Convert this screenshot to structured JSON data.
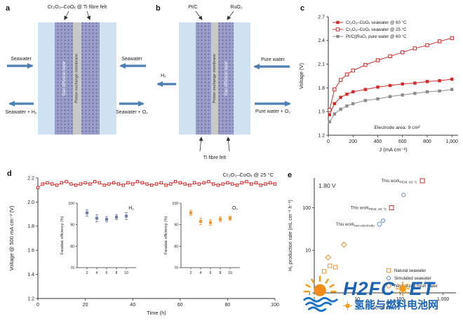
{
  "panels": {
    "a": {
      "label": "a",
      "title": "Cr₂O₃–CoOₓ @ Ti fibre felt",
      "layer_gdl": "Gas diffusion layer",
      "layer_pem": "Proton exchange membrane",
      "in_left": "Seawater",
      "out_left": "Seawater + H₂",
      "in_right": "Seawater",
      "out_right": "Seawater + O₂"
    },
    "b": {
      "label": "b",
      "cathode": "Pt/C",
      "anode": "RuO₂",
      "layer_gdl": "Gas diffusion layer",
      "layer_pem": "Proton exchange membrane",
      "out_left": "H₂",
      "in_right": "Pure water",
      "out_right": "Pure water + O₂",
      "felt": "Ti fibre felt"
    },
    "c": {
      "label": "c"
    },
    "d": {
      "label": "d"
    },
    "e": {
      "label": "e"
    }
  },
  "chart_data": [
    {
      "id": "c",
      "type": "line",
      "title": "",
      "xlabel": "J (mA cm⁻²)",
      "ylabel": "Voltage (V)",
      "xlim": [
        0,
        1050
      ],
      "ylim": [
        1.2,
        2.7
      ],
      "xticks": [
        0,
        200,
        400,
        600,
        800,
        1000
      ],
      "xtick_labels": [
        "0",
        "200",
        "400",
        "600",
        "800",
        "1,000"
      ],
      "yticks": [
        1.2,
        1.5,
        1.8,
        2.1,
        2.4,
        2.7
      ],
      "ytick_labels": [
        "1.2",
        "1.5",
        "1.8",
        "2.1",
        "2.4",
        "2.7"
      ],
      "annotation": "Electrode area: 9 cm²",
      "x": [
        10,
        50,
        100,
        150,
        200,
        300,
        400,
        500,
        600,
        700,
        800,
        900,
        1000
      ],
      "series": [
        {
          "name": "Cr₂O₃–CoOₓ seawater @ 60 °C",
          "marker": "square-filled",
          "color": "#d42a2a",
          "values": [
            1.46,
            1.6,
            1.68,
            1.72,
            1.75,
            1.78,
            1.81,
            1.83,
            1.85,
            1.86,
            1.88,
            1.89,
            1.91
          ]
        },
        {
          "name": "Cr₂O₃–CoOₓ seawater @ 25 °C",
          "marker": "square-open",
          "color": "#d42a2a",
          "values": [
            1.52,
            1.78,
            1.9,
            1.97,
            2.02,
            2.09,
            2.15,
            2.2,
            2.25,
            2.3,
            2.34,
            2.39,
            2.43
          ]
        },
        {
          "name": "Pt/C||RuO₂ pure water @ 60 °C",
          "marker": "square-filled",
          "color": "#8c8c8c",
          "values": [
            1.37,
            1.47,
            1.53,
            1.57,
            1.6,
            1.64,
            1.66,
            1.69,
            1.71,
            1.73,
            1.75,
            1.76,
            1.78
          ]
        }
      ]
    },
    {
      "id": "d_main",
      "type": "line",
      "annotation": "Cr₂O₃–CoOₓ @ 25 °C",
      "xlabel": "Time (h)",
      "ylabel": "Voltage @ 500 mA cm⁻² (V)",
      "color": "#d42a2a",
      "xlim": [
        0,
        100
      ],
      "ylim": [
        1.2,
        2.2
      ],
      "xticks": [
        0,
        20,
        40,
        60,
        80,
        100
      ],
      "xtick_labels": [
        "0",
        "20",
        "40",
        "60",
        "80",
        "100"
      ],
      "yticks": [
        1.2,
        1.4,
        1.6,
        1.8,
        2.0,
        2.2
      ],
      "ytick_labels": [
        "1.2",
        "1.4",
        "1.6",
        "1.8",
        "2.0",
        "2.2"
      ],
      "step": 2,
      "values": [
        2.12,
        2.15,
        2.16,
        2.15,
        2.14,
        2.16,
        2.17,
        2.15,
        2.14,
        2.15,
        2.16,
        2.15,
        2.17,
        2.16,
        2.14,
        2.15,
        2.16,
        2.15,
        2.14,
        2.16,
        2.15,
        2.17,
        2.16,
        2.15,
        2.14,
        2.15,
        2.16,
        2.14,
        2.15,
        2.17,
        2.16,
        2.15,
        2.14,
        2.16,
        2.15,
        2.16,
        2.17,
        2.15,
        2.14,
        2.15,
        2.16,
        2.15,
        2.14,
        2.16,
        2.17,
        2.15,
        2.16,
        2.14,
        2.15,
        2.16,
        2.15
      ]
    },
    {
      "id": "d_inset_h2",
      "type": "scatter",
      "label": "H₂",
      "color": "#6b7fae",
      "ylabel": "Faradaic efficiency (%)",
      "xlim": [
        0,
        12
      ],
      "ylim": [
        70,
        100
      ],
      "xticks": [
        2,
        4,
        6,
        8,
        10
      ],
      "yticks": [
        70,
        80,
        90,
        100
      ],
      "ytick_labels": [
        "70",
        "80",
        "90",
        "100"
      ],
      "x": [
        2,
        4,
        6,
        8,
        10
      ],
      "values": [
        95.5,
        93.0,
        92.5,
        93.5,
        94.0
      ],
      "errors": [
        1.5,
        1.6,
        1.3,
        1.2,
        1.6
      ]
    },
    {
      "id": "d_inset_o2",
      "type": "scatter",
      "label": "O₂",
      "color": "#f0942c",
      "ylabel": "Faradaic efficiency (%)",
      "xlim": [
        0,
        12
      ],
      "ylim": [
        70,
        100
      ],
      "xticks": [
        2,
        4,
        6,
        8,
        10
      ],
      "yticks": [
        70,
        80,
        90,
        100
      ],
      "ytick_labels": [
        "70",
        "80",
        "90",
        "100"
      ],
      "x": [
        2,
        4,
        6,
        8,
        10
      ],
      "values": [
        95.5,
        91.5,
        91.0,
        92.5,
        93.0
      ],
      "errors": [
        1.2,
        1.5,
        1.3,
        1.2,
        1.0
      ]
    },
    {
      "id": "e",
      "type": "scatter",
      "annotation": "1.80 V",
      "xlabel": "J (mA cm⁻²)",
      "ylabel": "H₂ production rate (mL cm⁻² h⁻¹)",
      "xscale": "log",
      "yscale": "log",
      "xlim": [
        1,
        2000
      ],
      "ylim": [
        1,
        500
      ],
      "xticks": [
        1,
        10,
        100,
        1000
      ],
      "xtick_labels": [
        "1",
        "10",
        "100",
        "1,000"
      ],
      "yticks": [
        1,
        10,
        100
      ],
      "ytick_labels": [
        "1",
        "10",
        "100"
      ],
      "series": [
        {
          "name": "Natural seawater",
          "marker": "square-open",
          "color": "#f0953c",
          "points": [
            [
              1.7,
              3.2
            ],
            [
              2.3,
              4.3
            ],
            [
              3.1,
              4.0
            ]
          ]
        },
        {
          "name": "Simulated seawater",
          "marker": "circle-open",
          "color": "#6b8fd4",
          "points": [
            [
              40,
              50
            ],
            [
              120,
              200
            ]
          ]
        },
        {
          "name": "Neutralized fresh water",
          "marker": "diamond-open",
          "color": "#f0953c",
          "points": [
            [
              2.1,
              6.8
            ],
            [
              4.9,
              13.5
            ]
          ]
        }
      ],
      "highlights": [
        {
          "label": "This work",
          "sub": "PEM, 60 °C",
          "marker": "square-open",
          "color": "#d42a2a",
          "point": [
            330,
            430
          ]
        },
        {
          "label": "This work",
          "sub": "PEM, 25 °C",
          "marker": "square-open",
          "color": "#d42a2a",
          "point": [
            63,
            100
          ]
        },
        {
          "label": "This work",
          "sub": "two-electrode",
          "marker": "circle-open",
          "color": "#6b8fd4",
          "point": [
            33,
            41
          ]
        }
      ]
    }
  ],
  "watermark": {
    "title": "H2FC",
    "suffix": "ET",
    "subtitle": "氢能与燃料电池网"
  }
}
